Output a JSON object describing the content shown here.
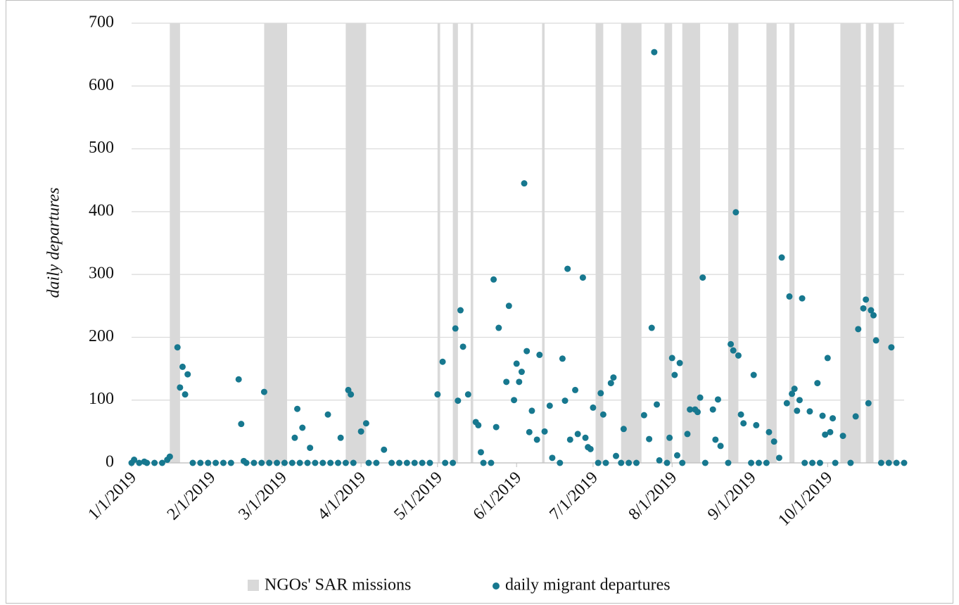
{
  "chart_data": {
    "type": "scatter",
    "ylabel": "daily departures",
    "xlim": [
      "2019-01-01",
      "2019-10-31"
    ],
    "xticks": [
      {
        "value": "2019-01-01",
        "label": "1/1/2019"
      },
      {
        "value": "2019-02-01",
        "label": "2/1/2019"
      },
      {
        "value": "2019-03-01",
        "label": "3/1/2019"
      },
      {
        "value": "2019-04-01",
        "label": "4/1/2019"
      },
      {
        "value": "2019-05-01",
        "label": "5/1/2019"
      },
      {
        "value": "2019-06-01",
        "label": "6/1/2019"
      },
      {
        "value": "2019-07-01",
        "label": "7/1/2019"
      },
      {
        "value": "2019-08-01",
        "label": "8/1/2019"
      },
      {
        "value": "2019-09-01",
        "label": "9/1/2019"
      },
      {
        "value": "2019-10-01",
        "label": "10/1/2019"
      }
    ],
    "ylim": [
      0,
      700
    ],
    "yticks": [
      0,
      100,
      200,
      300,
      400,
      500,
      600,
      700
    ],
    "grid": true,
    "bands": {
      "name": "NGOs' SAR missions",
      "color": "#d9d9d9",
      "ranges": [
        [
          "2019-01-16",
          "2019-01-20"
        ],
        [
          "2019-02-22",
          "2019-03-03"
        ],
        [
          "2019-03-26",
          "2019-04-03"
        ],
        [
          "2019-05-01",
          "2019-05-02"
        ],
        [
          "2019-05-07",
          "2019-05-09"
        ],
        [
          "2019-05-14",
          "2019-05-15"
        ],
        [
          "2019-06-11",
          "2019-06-12"
        ],
        [
          "2019-07-02",
          "2019-07-05"
        ],
        [
          "2019-07-12",
          "2019-07-20"
        ],
        [
          "2019-07-29",
          "2019-08-01"
        ],
        [
          "2019-08-05",
          "2019-08-12"
        ],
        [
          "2019-08-23",
          "2019-08-27"
        ],
        [
          "2019-09-07",
          "2019-09-11"
        ],
        [
          "2019-09-16",
          "2019-09-18"
        ],
        [
          "2019-10-06",
          "2019-10-14"
        ],
        [
          "2019-10-16",
          "2019-10-19"
        ],
        [
          "2019-10-21",
          "2019-10-27"
        ]
      ]
    },
    "series": [
      {
        "name": "daily migrant departures",
        "color": "#17788f",
        "x": [
          "2019-01-02",
          "2019-01-06",
          "2019-01-15",
          "2019-01-16",
          "2019-01-19",
          "2019-01-20",
          "2019-01-21",
          "2019-01-22",
          "2019-01-23",
          "2019-02-12",
          "2019-02-13",
          "2019-02-14",
          "2019-02-22",
          "2019-03-06",
          "2019-03-07",
          "2019-03-09",
          "2019-03-12",
          "2019-03-19",
          "2019-03-24",
          "2019-03-27",
          "2019-03-28",
          "2019-04-01",
          "2019-04-03",
          "2019-04-10",
          "2019-05-01",
          "2019-05-03",
          "2019-05-08",
          "2019-05-09",
          "2019-05-10",
          "2019-05-11",
          "2019-05-13",
          "2019-05-16",
          "2019-05-17",
          "2019-05-18",
          "2019-05-23",
          "2019-05-24",
          "2019-05-25",
          "2019-05-28",
          "2019-05-29",
          "2019-05-31",
          "2019-06-01",
          "2019-06-02",
          "2019-06-03",
          "2019-06-04",
          "2019-06-05",
          "2019-06-06",
          "2019-06-07",
          "2019-06-09",
          "2019-06-10",
          "2019-06-12",
          "2019-06-14",
          "2019-06-15",
          "2019-06-19",
          "2019-06-20",
          "2019-06-21",
          "2019-06-22",
          "2019-06-24",
          "2019-06-25",
          "2019-06-27",
          "2019-06-28",
          "2019-06-29",
          "2019-06-30",
          "2019-07-01",
          "2019-07-04",
          "2019-07-05",
          "2019-07-08",
          "2019-07-09",
          "2019-07-10",
          "2019-07-13",
          "2019-07-21",
          "2019-07-23",
          "2019-07-24",
          "2019-07-25",
          "2019-07-26",
          "2019-07-27",
          "2019-07-31",
          "2019-08-01",
          "2019-08-02",
          "2019-08-03",
          "2019-08-04",
          "2019-08-07",
          "2019-08-08",
          "2019-08-10",
          "2019-08-11",
          "2019-08-12",
          "2019-08-13",
          "2019-08-17",
          "2019-08-18",
          "2019-08-19",
          "2019-08-20",
          "2019-08-24",
          "2019-08-25",
          "2019-08-26",
          "2019-08-27",
          "2019-08-28",
          "2019-08-29",
          "2019-09-02",
          "2019-09-03",
          "2019-09-08",
          "2019-09-10",
          "2019-09-12",
          "2019-09-13",
          "2019-09-15",
          "2019-09-16",
          "2019-09-17",
          "2019-09-18",
          "2019-09-19",
          "2019-09-20",
          "2019-09-21",
          "2019-09-24",
          "2019-09-27",
          "2019-09-29",
          "2019-09-30",
          "2019-10-01",
          "2019-10-02",
          "2019-10-03",
          "2019-10-07",
          "2019-10-12",
          "2019-10-13",
          "2019-10-15",
          "2019-10-16",
          "2019-10-17",
          "2019-10-18",
          "2019-10-19",
          "2019-10-20",
          "2019-10-26",
          "2019-01-01",
          "2019-01-04",
          "2019-01-07",
          "2019-01-10",
          "2019-01-13",
          "2019-01-25",
          "2019-01-28",
          "2019-01-31",
          "2019-02-03",
          "2019-02-06",
          "2019-02-09",
          "2019-02-15",
          "2019-02-18",
          "2019-02-21",
          "2019-02-24",
          "2019-02-27",
          "2019-03-02",
          "2019-03-05",
          "2019-03-08",
          "2019-03-11",
          "2019-03-14",
          "2019-03-17",
          "2019-03-20",
          "2019-03-23",
          "2019-03-26",
          "2019-03-29",
          "2019-04-04",
          "2019-04-07",
          "2019-04-13",
          "2019-04-16",
          "2019-04-19",
          "2019-04-22",
          "2019-04-25",
          "2019-04-28",
          "2019-05-04",
          "2019-05-07",
          "2019-05-19",
          "2019-05-22",
          "2019-06-18",
          "2019-07-03",
          "2019-07-06",
          "2019-07-12",
          "2019-07-15",
          "2019-07-18",
          "2019-07-30",
          "2019-08-05",
          "2019-08-14",
          "2019-08-23",
          "2019-09-01",
          "2019-09-04",
          "2019-09-07",
          "2019-09-22",
          "2019-09-25",
          "2019-09-28",
          "2019-10-04",
          "2019-10-10",
          "2019-10-22",
          "2019-10-25",
          "2019-10-28",
          "2019-10-31"
        ],
        "values": [
          5,
          2,
          5,
          10,
          184,
          120,
          153,
          109,
          141,
          133,
          62,
          3,
          113,
          40,
          86,
          56,
          24,
          77,
          40,
          116,
          109,
          50,
          63,
          21,
          109,
          161,
          214,
          99,
          243,
          185,
          109,
          65,
          60,
          17,
          292,
          57,
          215,
          129,
          250,
          100,
          158,
          129,
          145,
          445,
          178,
          49,
          83,
          37,
          172,
          50,
          91,
          8,
          166,
          99,
          309,
          37,
          116,
          46,
          295,
          40,
          25,
          22,
          88,
          111,
          77,
          127,
          136,
          11,
          54,
          76,
          38,
          215,
          654,
          93,
          4,
          40,
          167,
          140,
          12,
          159,
          46,
          85,
          85,
          81,
          104,
          295,
          85,
          37,
          101,
          27,
          189,
          179,
          399,
          171,
          77,
          63,
          140,
          60,
          49,
          34,
          8,
          327,
          95,
          265,
          110,
          118,
          83,
          100,
          262,
          82,
          127,
          75,
          45,
          167,
          49,
          71,
          43,
          74,
          213,
          246,
          260,
          95,
          243,
          235,
          195,
          184,
          0,
          0,
          0,
          0,
          0,
          0,
          0,
          0,
          0,
          0,
          0,
          0,
          0,
          0,
          0,
          0,
          0,
          0,
          0,
          0,
          0,
          0,
          0,
          0,
          0,
          0,
          0,
          0,
          0,
          0,
          0,
          0,
          0,
          0,
          0,
          0,
          0,
          0,
          0,
          0,
          0,
          0,
          0,
          0,
          0,
          0,
          0,
          0,
          0,
          0,
          0,
          0,
          0,
          0,
          0,
          0,
          0,
          0,
          0,
          0
        ]
      }
    ]
  }
}
